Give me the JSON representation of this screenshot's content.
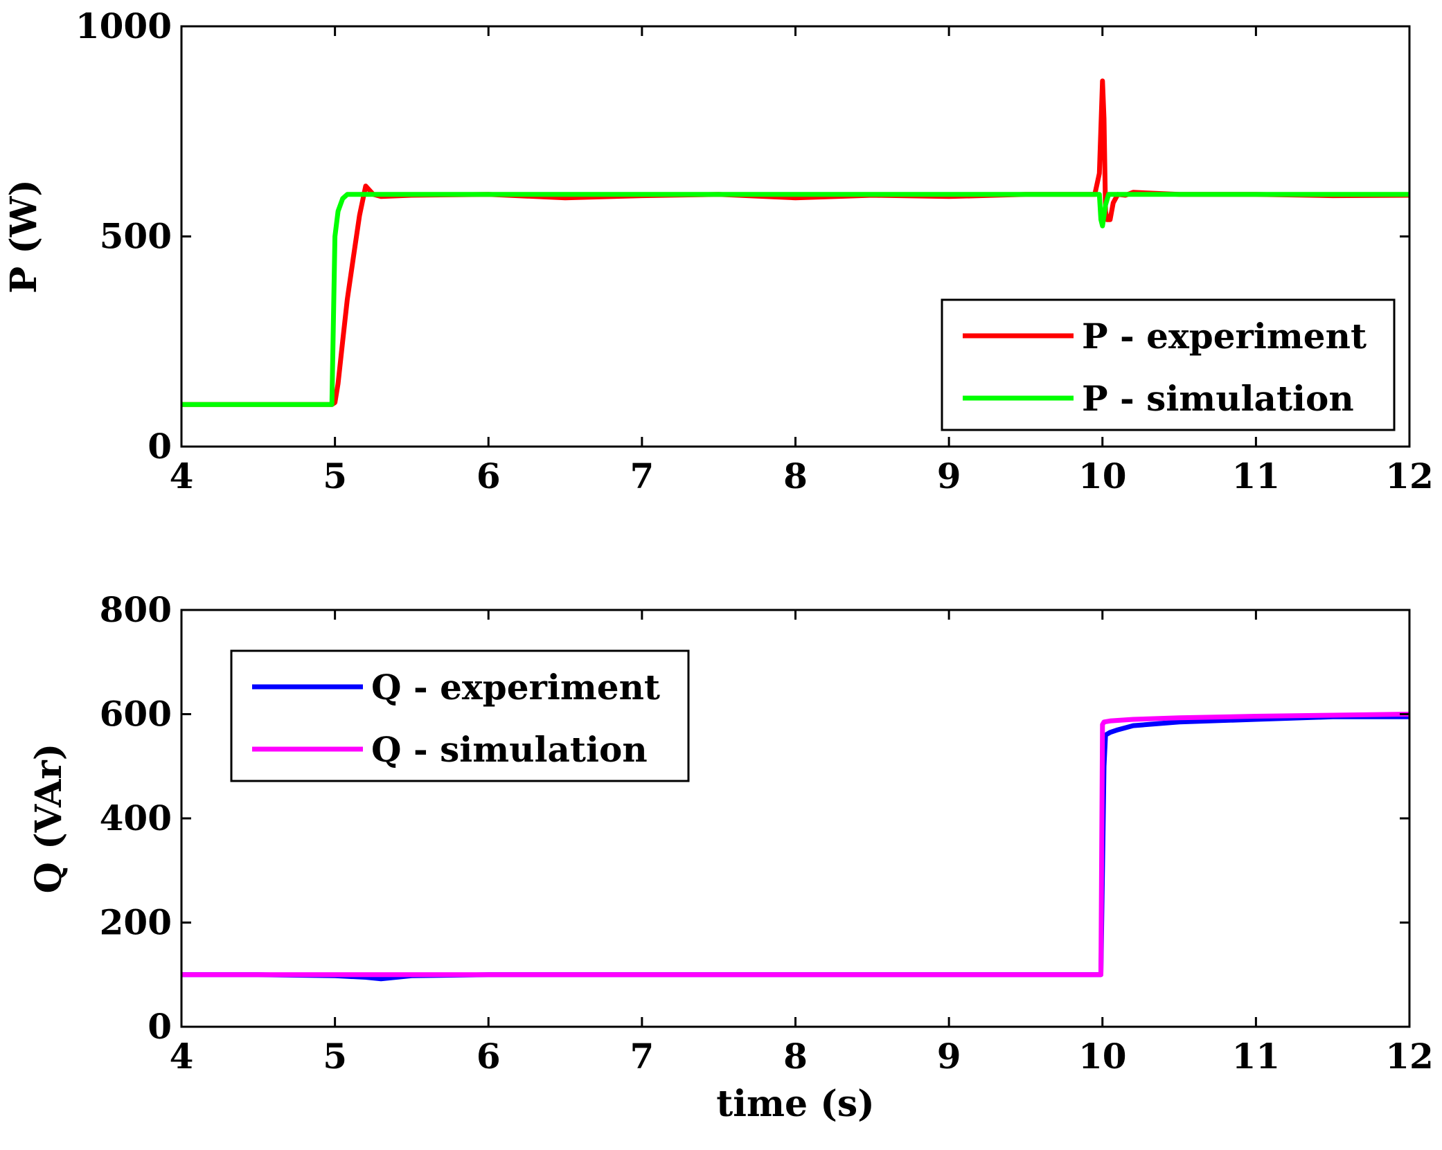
{
  "chart_data": [
    {
      "type": "line",
      "title": "",
      "xlabel": "",
      "ylabel": "P (W)",
      "xlim": [
        4,
        12
      ],
      "ylim": [
        0,
        1000
      ],
      "xticks": [
        "4",
        "5",
        "6",
        "7",
        "8",
        "9",
        "10",
        "11",
        "12"
      ],
      "yticks": [
        "0",
        "500",
        "1000"
      ],
      "legend_position": "bottom-right",
      "series": [
        {
          "name": "P - experiment",
          "color": "#ff0000",
          "x": [
            4,
            4.98,
            5.0,
            5.02,
            5.05,
            5.08,
            5.12,
            5.16,
            5.2,
            5.25,
            5.3,
            5.5,
            6,
            6.5,
            7,
            7.5,
            8,
            8.5,
            9,
            9.5,
            9.95,
            9.98,
            10.0,
            10.01,
            10.02,
            10.03,
            10.05,
            10.07,
            10.1,
            10.15,
            10.2,
            10.5,
            11,
            11.5,
            12
          ],
          "y": [
            100,
            100,
            105,
            150,
            250,
            350,
            450,
            550,
            620,
            600,
            595,
            598,
            600,
            592,
            597,
            600,
            592,
            598,
            595,
            600,
            600,
            650,
            870,
            780,
            560,
            540,
            540,
            580,
            600,
            598,
            605,
            600,
            600,
            597,
            598
          ]
        },
        {
          "name": "P - simulation",
          "color": "#00ff00",
          "x": [
            4,
            4.98,
            4.99,
            5.0,
            5.02,
            5.05,
            5.08,
            5.12,
            5.2,
            5.5,
            6,
            7,
            8,
            9,
            9.98,
            9.99,
            10.0,
            10.02,
            10.04,
            10.06,
            10.1,
            10.5,
            11,
            12
          ],
          "y": [
            100,
            100,
            300,
            500,
            560,
            590,
            600,
            600,
            600,
            600,
            600,
            600,
            600,
            600,
            600,
            540,
            525,
            575,
            600,
            600,
            600,
            600,
            600,
            600
          ]
        }
      ]
    },
    {
      "type": "line",
      "title": "",
      "xlabel": "time (s)",
      "ylabel": "Q (VAr)",
      "xlim": [
        4,
        12
      ],
      "ylim": [
        0,
        800
      ],
      "xticks": [
        "4",
        "5",
        "6",
        "7",
        "8",
        "9",
        "10",
        "11",
        "12"
      ],
      "yticks": [
        "0",
        "200",
        "400",
        "600",
        "800"
      ],
      "legend_position": "top-left",
      "series": [
        {
          "name": "Q - experiment",
          "color": "#0000ff",
          "x": [
            4,
            4.5,
            5.0,
            5.2,
            5.3,
            5.5,
            6,
            6.5,
            7,
            7.5,
            8,
            8.5,
            9,
            9.5,
            9.98,
            9.99,
            10.0,
            10.01,
            10.02,
            10.05,
            10.1,
            10.2,
            10.5,
            11,
            11.5,
            12
          ],
          "y": [
            100,
            100,
            98,
            95,
            92,
            98,
            100,
            100,
            100,
            100,
            100,
            100,
            100,
            100,
            100,
            100,
            300,
            500,
            560,
            565,
            570,
            578,
            585,
            590,
            595,
            595
          ]
        },
        {
          "name": "Q - simulation",
          "color": "#ff00ff",
          "x": [
            4,
            5,
            6,
            7,
            8,
            9,
            9.99,
            10.0,
            10.01,
            10.05,
            10.2,
            10.5,
            11,
            11.5,
            12
          ],
          "y": [
            100,
            100,
            100,
            100,
            100,
            100,
            100,
            580,
            585,
            587,
            590,
            593,
            596,
            598,
            600
          ]
        }
      ]
    }
  ]
}
